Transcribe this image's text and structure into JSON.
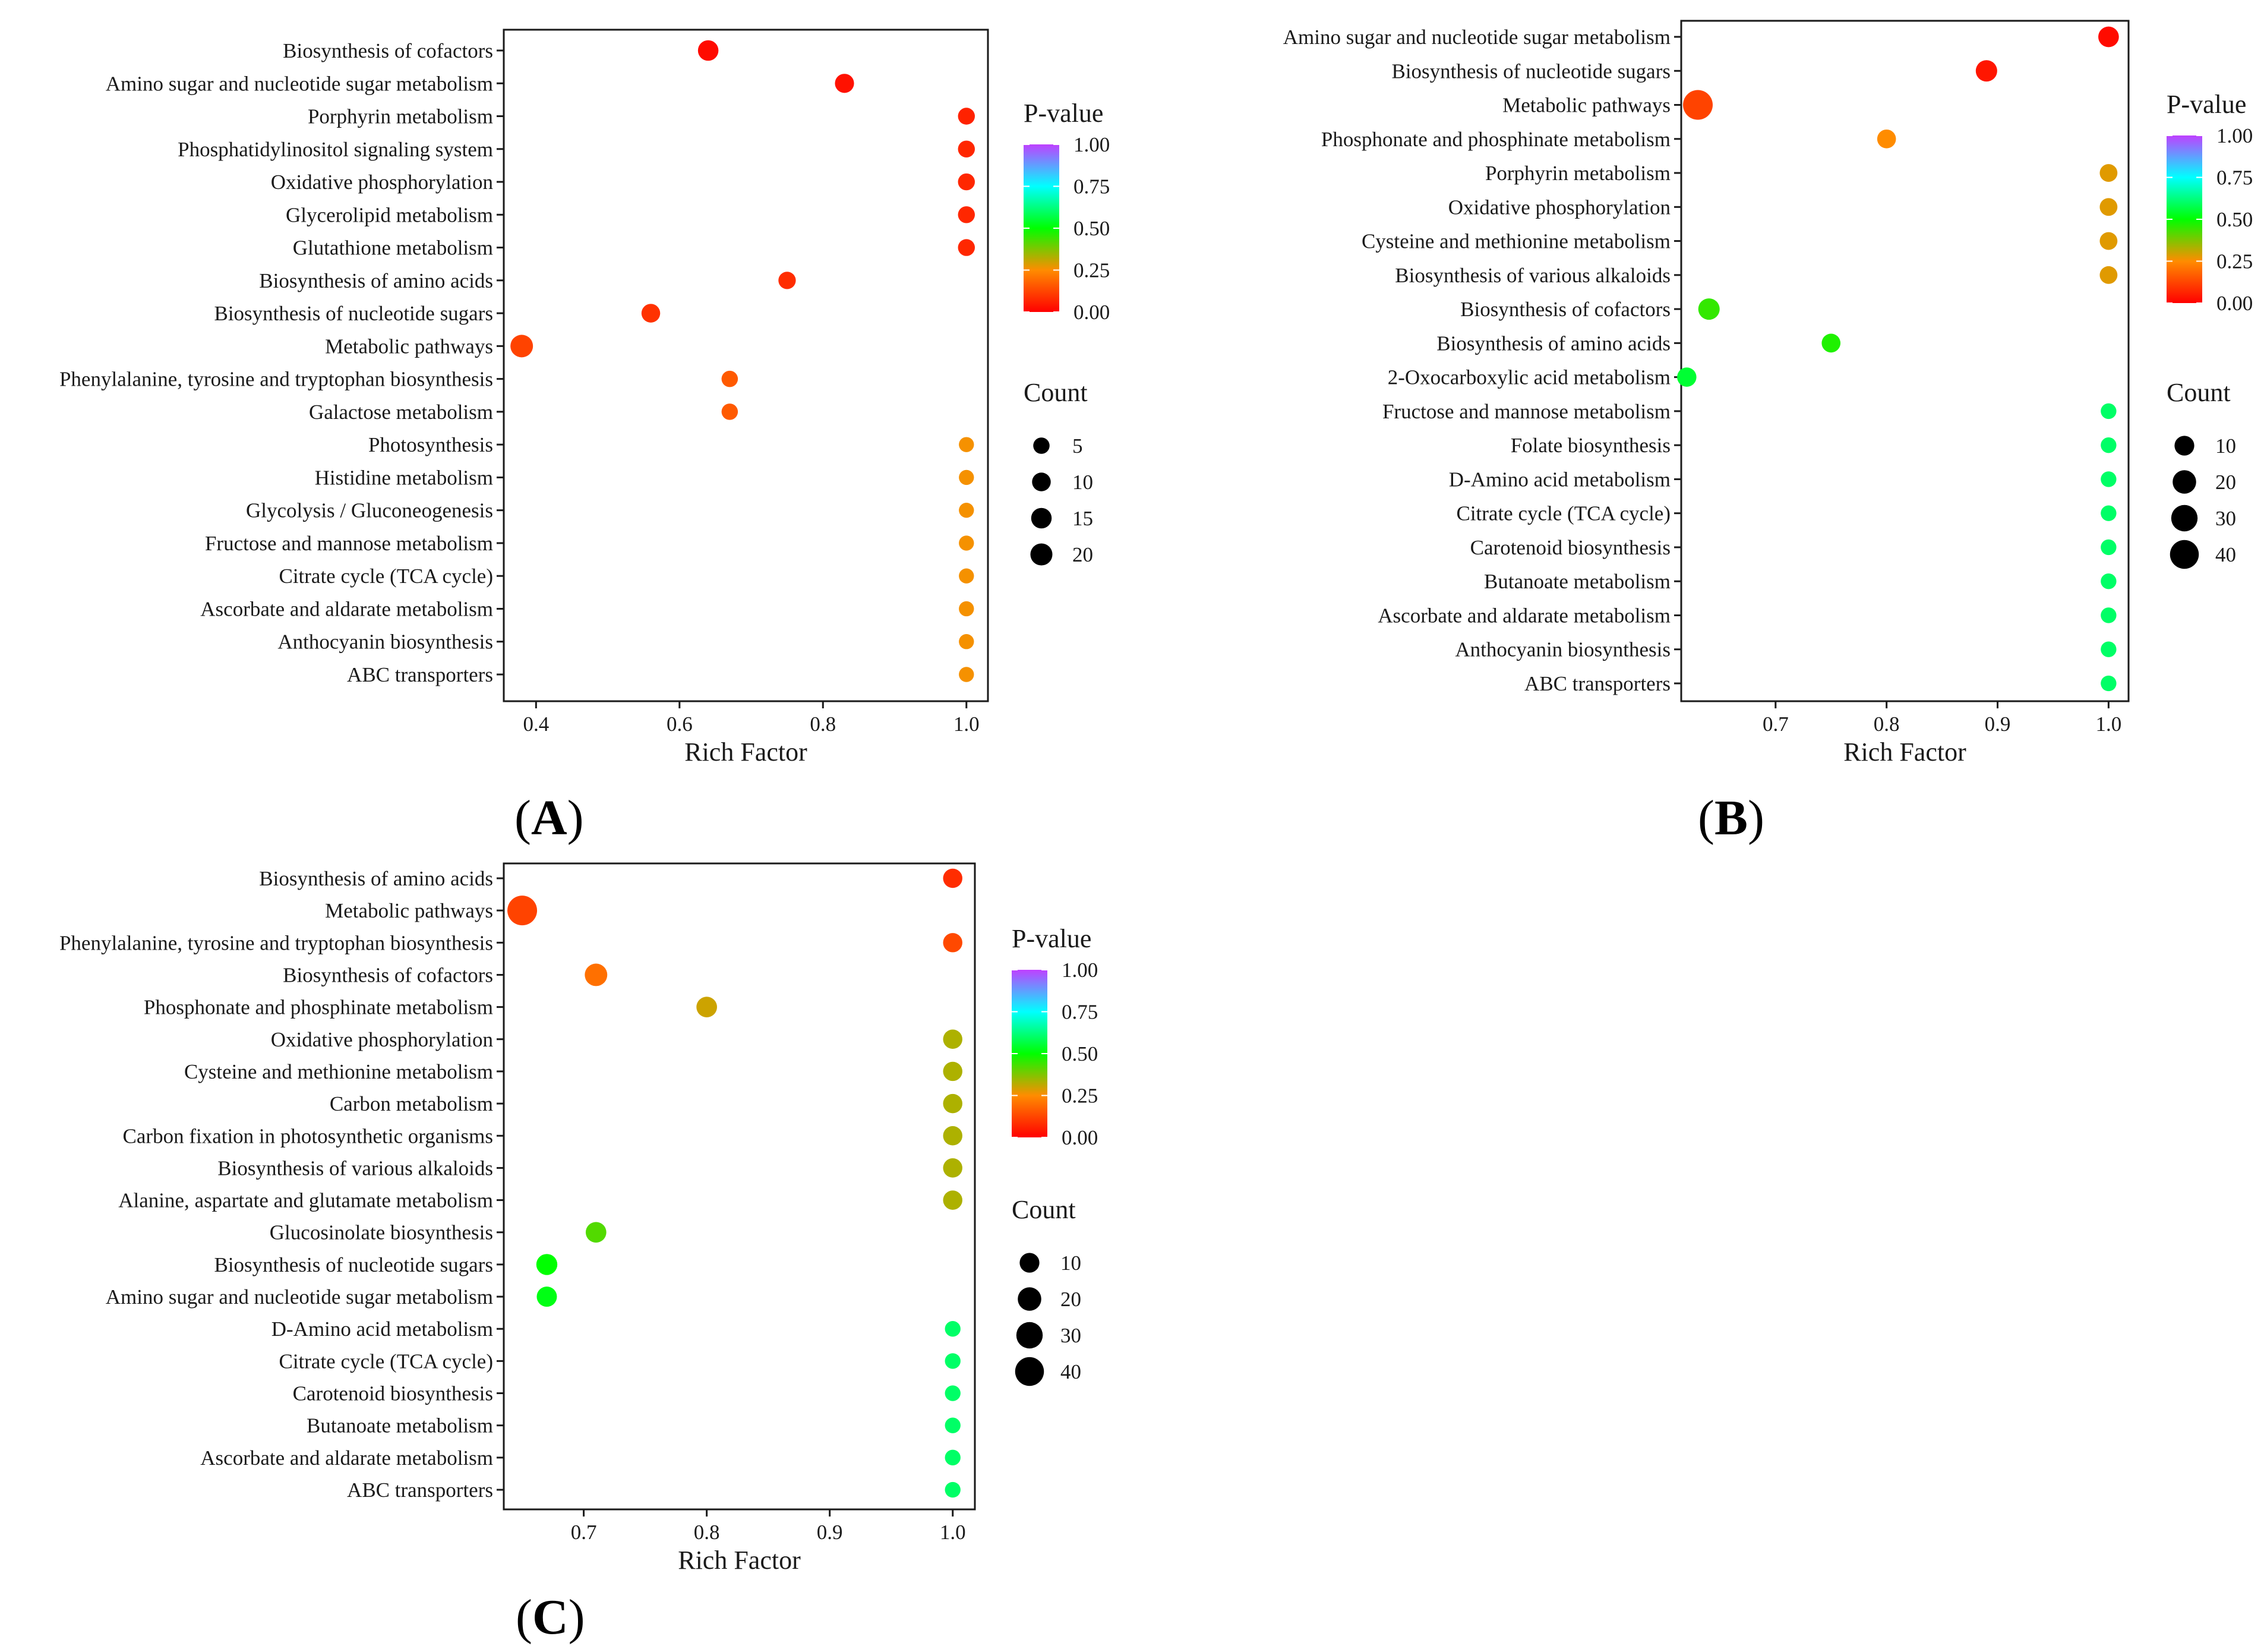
{
  "chart_data": [
    {
      "type": "scatter",
      "panel_label": "A",
      "xlabel": "Rich Factor",
      "xticks": [
        0.4,
        0.6,
        0.8,
        1.0
      ],
      "xlim": [
        0.355,
        1.03
      ],
      "color_legend_title": "P-value",
      "color_ticks": [
        "1.00",
        "0.75",
        "0.50",
        "0.25",
        "0.00"
      ],
      "size_legend_title": "Count",
      "size_ticks": [
        5,
        10,
        15,
        20
      ],
      "size_max": 22,
      "points": [
        {
          "pathway": "Biosynthesis of cofactors",
          "rich_factor": 0.64,
          "count": 15,
          "p_value": 0.02
        },
        {
          "pathway": "Amino sugar and nucleotide sugar metabolism",
          "rich_factor": 0.83,
          "count": 11,
          "p_value": 0.03
        },
        {
          "pathway": "Porphyrin metabolism",
          "rich_factor": 1.0,
          "count": 6,
          "p_value": 0.06
        },
        {
          "pathway": "Phosphatidylinositol signaling system",
          "rich_factor": 1.0,
          "count": 6,
          "p_value": 0.07
        },
        {
          "pathway": "Oxidative phosphorylation",
          "rich_factor": 1.0,
          "count": 6,
          "p_value": 0.07
        },
        {
          "pathway": "Glycerolipid metabolism",
          "rich_factor": 1.0,
          "count": 6,
          "p_value": 0.07
        },
        {
          "pathway": "Glutathione metabolism",
          "rich_factor": 1.0,
          "count": 6,
          "p_value": 0.07
        },
        {
          "pathway": "Biosynthesis of amino acids",
          "rich_factor": 0.75,
          "count": 7,
          "p_value": 0.08
        },
        {
          "pathway": "Biosynthesis of nucleotide sugars",
          "rich_factor": 0.56,
          "count": 10,
          "p_value": 0.09
        },
        {
          "pathway": "Metabolic pathways",
          "rich_factor": 0.38,
          "count": 22,
          "p_value": 0.12
        },
        {
          "pathway": "Phenylalanine, tyrosine and tryptophan biosynthesis",
          "rich_factor": 0.67,
          "count": 5,
          "p_value": 0.16
        },
        {
          "pathway": "Galactose metabolism",
          "rich_factor": 0.67,
          "count": 5,
          "p_value": 0.16
        },
        {
          "pathway": "Photosynthesis",
          "rich_factor": 1.0,
          "count": 3,
          "p_value": 0.26
        },
        {
          "pathway": "Histidine metabolism",
          "rich_factor": 1.0,
          "count": 3,
          "p_value": 0.26
        },
        {
          "pathway": "Glycolysis / Gluconeogenesis",
          "rich_factor": 1.0,
          "count": 3,
          "p_value": 0.26
        },
        {
          "pathway": "Fructose and mannose metabolism",
          "rich_factor": 1.0,
          "count": 3,
          "p_value": 0.26
        },
        {
          "pathway": "Citrate cycle (TCA cycle)",
          "rich_factor": 1.0,
          "count": 3,
          "p_value": 0.26
        },
        {
          "pathway": "Ascorbate and aldarate metabolism",
          "rich_factor": 1.0,
          "count": 3,
          "p_value": 0.26
        },
        {
          "pathway": "Anthocyanin biosynthesis",
          "rich_factor": 1.0,
          "count": 3,
          "p_value": 0.26
        },
        {
          "pathway": "ABC transporters",
          "rich_factor": 1.0,
          "count": 3,
          "p_value": 0.26
        }
      ]
    },
    {
      "type": "scatter",
      "panel_label": "B",
      "xlabel": "Rich Factor",
      "xticks": [
        0.7,
        0.8,
        0.9,
        1.0
      ],
      "xlim": [
        0.615,
        1.018
      ],
      "color_legend_title": "P-value",
      "color_ticks": [
        "1.00",
        "0.75",
        "0.50",
        "0.25",
        "0.00"
      ],
      "size_legend_title": "Count",
      "size_ticks": [
        10,
        20,
        30,
        40
      ],
      "size_max": 44,
      "points": [
        {
          "pathway": "Amino sugar and nucleotide sugar metabolism",
          "rich_factor": 1.0,
          "count": 12,
          "p_value": 0.02
        },
        {
          "pathway": "Biosynthesis of nucleotide sugars",
          "rich_factor": 0.89,
          "count": 14,
          "p_value": 0.04
        },
        {
          "pathway": "Metabolic pathways",
          "rich_factor": 0.63,
          "count": 44,
          "p_value": 0.12
        },
        {
          "pathway": "Phosphonate and phosphinate metabolism",
          "rich_factor": 0.8,
          "count": 8,
          "p_value": 0.25
        },
        {
          "pathway": "Porphyrin metabolism",
          "rich_factor": 1.0,
          "count": 6,
          "p_value": 0.28
        },
        {
          "pathway": "Oxidative phosphorylation",
          "rich_factor": 1.0,
          "count": 6,
          "p_value": 0.28
        },
        {
          "pathway": "Cysteine and methionine metabolism",
          "rich_factor": 1.0,
          "count": 6,
          "p_value": 0.28
        },
        {
          "pathway": "Biosynthesis of various alkaloids",
          "rich_factor": 1.0,
          "count": 6,
          "p_value": 0.28
        },
        {
          "pathway": "Biosynthesis of cofactors",
          "rich_factor": 0.64,
          "count": 14,
          "p_value": 0.45
        },
        {
          "pathway": "Biosynthesis of amino acids",
          "rich_factor": 0.75,
          "count": 8,
          "p_value": 0.47
        },
        {
          "pathway": "2-Oxocarboxylic acid metabolism",
          "rich_factor": 0.62,
          "count": 9,
          "p_value": 0.55
        },
        {
          "pathway": "Fructose and mannose metabolism",
          "rich_factor": 1.0,
          "count": 3,
          "p_value": 0.6
        },
        {
          "pathway": "Folate biosynthesis",
          "rich_factor": 1.0,
          "count": 3,
          "p_value": 0.6
        },
        {
          "pathway": "D-Amino acid metabolism",
          "rich_factor": 1.0,
          "count": 3,
          "p_value": 0.6
        },
        {
          "pathway": "Citrate cycle (TCA cycle)",
          "rich_factor": 1.0,
          "count": 3,
          "p_value": 0.6
        },
        {
          "pathway": "Carotenoid biosynthesis",
          "rich_factor": 1.0,
          "count": 3,
          "p_value": 0.6
        },
        {
          "pathway": "Butanoate metabolism",
          "rich_factor": 1.0,
          "count": 3,
          "p_value": 0.6
        },
        {
          "pathway": "Ascorbate and aldarate metabolism",
          "rich_factor": 1.0,
          "count": 3,
          "p_value": 0.6
        },
        {
          "pathway": "Anthocyanin biosynthesis",
          "rich_factor": 1.0,
          "count": 3,
          "p_value": 0.6
        },
        {
          "pathway": "ABC transporters",
          "rich_factor": 1.0,
          "count": 3,
          "p_value": 0.6
        }
      ]
    },
    {
      "type": "scatter",
      "panel_label": "C",
      "xlabel": "Rich Factor",
      "xticks": [
        0.7,
        0.8,
        0.9,
        1.0
      ],
      "xlim": [
        0.635,
        1.018
      ],
      "color_legend_title": "P-value",
      "color_ticks": [
        "1.00",
        "0.75",
        "0.50",
        "0.25",
        "0.00"
      ],
      "size_legend_title": "Count",
      "size_ticks": [
        10,
        20,
        30,
        40
      ],
      "size_max": 44,
      "points": [
        {
          "pathway": "Biosynthesis of amino acids",
          "rich_factor": 1.0,
          "count": 9,
          "p_value": 0.08
        },
        {
          "pathway": "Metabolic pathways",
          "rich_factor": 0.65,
          "count": 44,
          "p_value": 0.12
        },
        {
          "pathway": "Phenylalanine, tyrosine and tryptophan biosynthesis",
          "rich_factor": 1.0,
          "count": 9,
          "p_value": 0.13
        },
        {
          "pathway": "Biosynthesis of cofactors",
          "rich_factor": 0.71,
          "count": 17,
          "p_value": 0.2
        },
        {
          "pathway": "Phosphonate and phosphinate metabolism",
          "rich_factor": 0.8,
          "count": 12,
          "p_value": 0.3
        },
        {
          "pathway": "Oxidative phosphorylation",
          "rich_factor": 1.0,
          "count": 9,
          "p_value": 0.33
        },
        {
          "pathway": "Cysteine and methionine metabolism",
          "rich_factor": 1.0,
          "count": 9,
          "p_value": 0.33
        },
        {
          "pathway": "Carbon metabolism",
          "rich_factor": 1.0,
          "count": 9,
          "p_value": 0.33
        },
        {
          "pathway": "Carbon fixation in photosynthetic organisms",
          "rich_factor": 1.0,
          "count": 9,
          "p_value": 0.33
        },
        {
          "pathway": "Biosynthesis of various alkaloids",
          "rich_factor": 1.0,
          "count": 9,
          "p_value": 0.33
        },
        {
          "pathway": "Alanine, aspartate and glutamate metabolism",
          "rich_factor": 1.0,
          "count": 9,
          "p_value": 0.33
        },
        {
          "pathway": "Glucosinolate biosynthesis",
          "rich_factor": 0.71,
          "count": 12,
          "p_value": 0.42
        },
        {
          "pathway": "Biosynthesis of nucleotide sugars",
          "rich_factor": 0.67,
          "count": 13,
          "p_value": 0.5
        },
        {
          "pathway": "Amino sugar and nucleotide sugar metabolism",
          "rich_factor": 0.67,
          "count": 11,
          "p_value": 0.52
        },
        {
          "pathway": "D-Amino acid metabolism",
          "rich_factor": 1.0,
          "count": 3,
          "p_value": 0.6
        },
        {
          "pathway": "Citrate cycle (TCA cycle)",
          "rich_factor": 1.0,
          "count": 3,
          "p_value": 0.6
        },
        {
          "pathway": "Carotenoid biosynthesis",
          "rich_factor": 1.0,
          "count": 3,
          "p_value": 0.6
        },
        {
          "pathway": "Butanoate metabolism",
          "rich_factor": 1.0,
          "count": 3,
          "p_value": 0.6
        },
        {
          "pathway": "Ascorbate and aldarate metabolism",
          "rich_factor": 1.0,
          "count": 3,
          "p_value": 0.6
        },
        {
          "pathway": "ABC transporters",
          "rich_factor": 1.0,
          "count": 3,
          "p_value": 0.6
        }
      ]
    }
  ],
  "colormap": [
    "#ff0000",
    "#ff8c00",
    "#00ff00",
    "#00ffff",
    "#bf40ff"
  ]
}
